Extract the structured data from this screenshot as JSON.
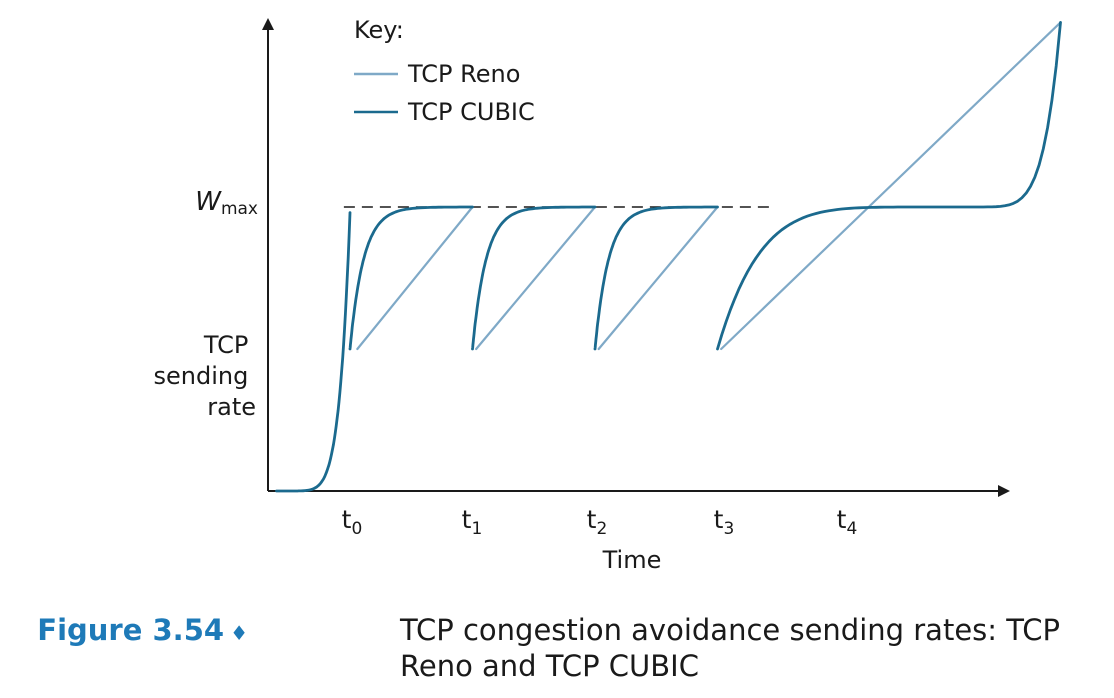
{
  "figure": {
    "label": "Figure 3.54",
    "separator": "♦",
    "caption": "TCP congestion avoidance sending rates: TCP Reno and TCP CUBIC",
    "accent_color": "#1e7ab8"
  },
  "chart_data": {
    "type": "line",
    "title": "",
    "xlabel": "Time",
    "ylabel": "TCP sending rate",
    "ylabel_lines": [
      "TCP",
      "sending",
      "rate"
    ],
    "ymark": {
      "name": "W",
      "subscript": "max",
      "style": "dashed"
    },
    "ticks": [
      {
        "name": "t",
        "subscript": "0"
      },
      {
        "name": "t",
        "subscript": "1"
      },
      {
        "name": "t",
        "subscript": "2"
      },
      {
        "name": "t",
        "subscript": "3"
      },
      {
        "name": "t",
        "subscript": "4"
      }
    ],
    "legend": {
      "title": "Key:",
      "position": "top-left",
      "entries": [
        "TCP Reno",
        "TCP CUBIC"
      ]
    },
    "xlim": [
      0,
      5.8
    ],
    "ylim": [
      0,
      1.5
    ],
    "wmax": 1,
    "series": [
      {
        "name": "TCP Reno",
        "color": "#7fa9c7",
        "segments": [
          [
            [
              0.06,
              0.5
            ],
            [
              1.0,
              1.0
            ]
          ],
          [
            [
              1.03,
              0.5
            ],
            [
              2.0,
              1.0
            ]
          ],
          [
            [
              2.03,
              0.5
            ],
            [
              3.0,
              1.0
            ]
          ],
          [
            [
              3.03,
              0.5
            ],
            [
              5.8,
              1.65
            ]
          ]
        ]
      },
      {
        "name": "TCP CUBIC",
        "color": "#1b6a8e",
        "segments": [
          {
            "kind": "slowstart",
            "x": [
              -0.6,
              0.0
            ],
            "y": [
              0.0,
              0.98
            ]
          },
          {
            "kind": "concave",
            "x": [
              0.0,
              1.0
            ],
            "y": [
              0.5,
              1.0
            ]
          },
          {
            "kind": "concave",
            "x": [
              1.0,
              2.0
            ],
            "y": [
              0.5,
              1.0
            ]
          },
          {
            "kind": "concave",
            "x": [
              2.0,
              3.0
            ],
            "y": [
              0.5,
              1.0
            ]
          },
          {
            "kind": "cubic",
            "x": [
              3.0,
              5.8
            ],
            "y": [
              0.5,
              1.65
            ]
          }
        ]
      }
    ]
  }
}
